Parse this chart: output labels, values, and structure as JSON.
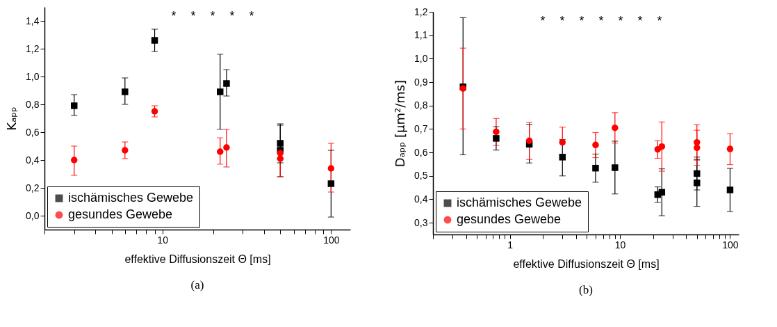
{
  "chart_data": [
    {
      "type": "scatter",
      "xlabel": "effektive Diffusionszeit Θ [ms]",
      "ylabel": "Kₐₚₚ",
      "log": "x",
      "legend": "bottom left",
      "xlim": [
        2,
        130
      ],
      "xticks": [
        {
          "value": 2,
          "label": null
        },
        {
          "value": 3,
          "label": null
        },
        {
          "value": 4,
          "label": null
        },
        {
          "value": 5,
          "label": null
        },
        {
          "value": 6,
          "label": null
        },
        {
          "value": 7,
          "label": null
        },
        {
          "value": 8,
          "label": null
        },
        {
          "value": 9,
          "label": null
        },
        10,
        {
          "value": 20,
          "label": null
        },
        {
          "value": 30,
          "label": null
        },
        {
          "value": 40,
          "label": null
        },
        {
          "value": 50,
          "label": null
        },
        {
          "value": 60,
          "label": null
        },
        {
          "value": 70,
          "label": null
        },
        {
          "value": 80,
          "label": null
        },
        {
          "value": 90,
          "label": null
        },
        100
      ],
      "ylim": [
        -0.1,
        1.5
      ],
      "yticks": [
        {
          "value": 0,
          "label": "0,0"
        },
        {
          "value": 0.2,
          "label": "0,2"
        },
        {
          "value": 0.4,
          "label": "0,4"
        },
        {
          "value": 0.6,
          "label": "0,6"
        },
        {
          "value": 0.8,
          "label": "0,8"
        },
        {
          "value": 1,
          "label": "1,0"
        },
        {
          "value": 1.2,
          "label": "1,2"
        },
        {
          "value": 1.4,
          "label": "1,4"
        }
      ],
      "series": [
        {
          "name": "ischämisches Gewebe",
          "color": "#000000",
          "marker": "square",
          "x": [
            3,
            6,
            9,
            22,
            24,
            50,
            50,
            100
          ],
          "values": [
            0.79,
            0.89,
            1.26,
            0.89,
            0.95,
            0.52,
            0.47,
            0.23
          ],
          "errors": [
            [
              0.72,
              0.87
            ],
            [
              0.8,
              0.99
            ],
            [
              1.18,
              1.34
            ],
            [
              0.62,
              1.16
            ],
            [
              0.86,
              1.05
            ],
            [
              0.38,
              0.65
            ],
            [
              0.28,
              0.66
            ],
            [
              -0.01,
              0.47
            ]
          ]
        },
        {
          "name": "gesundes Gewebe",
          "color": "#ff0000",
          "marker": "circle",
          "x": [
            3,
            6,
            9,
            22,
            24,
            50,
            50,
            100
          ],
          "values": [
            0.4,
            0.47,
            0.75,
            0.46,
            0.49,
            0.45,
            0.41,
            0.34
          ],
          "errors": [
            [
              0.29,
              0.5
            ],
            [
              0.41,
              0.53
            ],
            [
              0.71,
              0.79
            ],
            [
              0.37,
              0.56
            ],
            [
              0.35,
              0.62
            ],
            null,
            [
              0.28,
              0.41
            ],
            [
              0.17,
              0.52
            ]
          ]
        }
      ],
      "annotations": [
        "*",
        "*",
        "*",
        "*",
        "*",
        "(a)"
      ]
    },
    {
      "type": "scatter",
      "xlabel": "effektive Diffusionszeit Θ [ms]",
      "ylabel": "Dₐₚₚ [µm²/ms]",
      "log": "x",
      "legend": "bottom left",
      "xlim": [
        0.2,
        120
      ],
      "xticks": [
        {
          "value": 0.2,
          "label": null
        },
        {
          "value": 0.3,
          "label": null
        },
        {
          "value": 0.4,
          "label": null
        },
        {
          "value": 0.5,
          "label": null
        },
        {
          "value": 0.6,
          "label": null
        },
        {
          "value": 0.7,
          "label": null
        },
        {
          "value": 0.8,
          "label": null
        },
        {
          "value": 0.9,
          "label": null
        },
        1,
        {
          "value": 2,
          "label": null
        },
        {
          "value": 3,
          "label": null
        },
        {
          "value": 4,
          "label": null
        },
        {
          "value": 5,
          "label": null
        },
        {
          "value": 6,
          "label": null
        },
        {
          "value": 7,
          "label": null
        },
        {
          "value": 8,
          "label": null
        },
        {
          "value": 9,
          "label": null
        },
        10,
        {
          "value": 20,
          "label": null
        },
        {
          "value": 30,
          "label": null
        },
        {
          "value": 40,
          "label": null
        },
        {
          "value": 50,
          "label": null
        },
        {
          "value": 60,
          "label": null
        },
        {
          "value": 70,
          "label": null
        },
        {
          "value": 80,
          "label": null
        },
        {
          "value": 90,
          "label": null
        },
        100
      ],
      "ylim": [
        0.25,
        1.2
      ],
      "yticks": [
        {
          "value": 0.3,
          "label": "0,3"
        },
        {
          "value": 0.4,
          "label": "0,4"
        },
        {
          "value": 0.5,
          "label": "0,5"
        },
        {
          "value": 0.6,
          "label": "0,6"
        },
        {
          "value": 0.7,
          "label": "0,7"
        },
        {
          "value": 0.8,
          "label": "0,8"
        },
        {
          "value": 0.9,
          "label": "0,9"
        },
        {
          "value": 1,
          "label": "1,0"
        },
        {
          "value": 1.1,
          "label": "1,1"
        },
        {
          "value": 1.2,
          "label": "1,2"
        }
      ],
      "series": [
        {
          "name": "ischämisches Gewebe",
          "color": "#000000",
          "marker": "square",
          "x": [
            0.375,
            0.75,
            1.5,
            3,
            6,
            9,
            22,
            24,
            50,
            50,
            100
          ],
          "values": [
            0.88,
            0.66,
            0.635,
            0.58,
            0.533,
            0.535,
            0.42,
            0.43,
            0.51,
            0.47,
            0.44
          ],
          "errors": [
            [
              0.59,
              1.175
            ],
            [
              0.61,
              0.71
            ],
            [
              0.555,
              0.72
            ],
            [
              0.5,
              0.655
            ],
            [
              0.473,
              0.593
            ],
            [
              0.423,
              0.648
            ],
            [
              0.387,
              0.453
            ],
            [
              0.33,
              0.53
            ],
            [
              0.44,
              0.58
            ],
            [
              0.37,
              0.57
            ],
            [
              0.348,
              0.532
            ]
          ]
        },
        {
          "name": "gesundes Gewebe",
          "color": "#ff0000",
          "marker": "circle",
          "x": [
            0.375,
            0.75,
            1.5,
            3,
            6,
            9,
            22,
            24,
            50,
            50,
            100
          ],
          "values": [
            0.873,
            0.688,
            0.65,
            0.643,
            0.632,
            0.705,
            0.613,
            0.625,
            0.643,
            0.62,
            0.615
          ],
          "errors": [
            [
              0.7,
              1.045
            ],
            [
              0.63,
              0.745
            ],
            [
              0.57,
              0.728
            ],
            [
              0.643,
              0.708
            ],
            [
              0.578,
              0.685
            ],
            [
              0.64,
              0.77
            ],
            [
              0.575,
              0.65
            ],
            [
              0.52,
              0.73
            ],
            [
              0.567,
              0.718
            ],
            [
              0.545,
              0.695
            ],
            [
              0.548,
              0.68
            ]
          ]
        }
      ],
      "annotations": [
        "*",
        "*",
        "*",
        "*",
        "*",
        "*",
        "*",
        "(b)"
      ]
    }
  ]
}
